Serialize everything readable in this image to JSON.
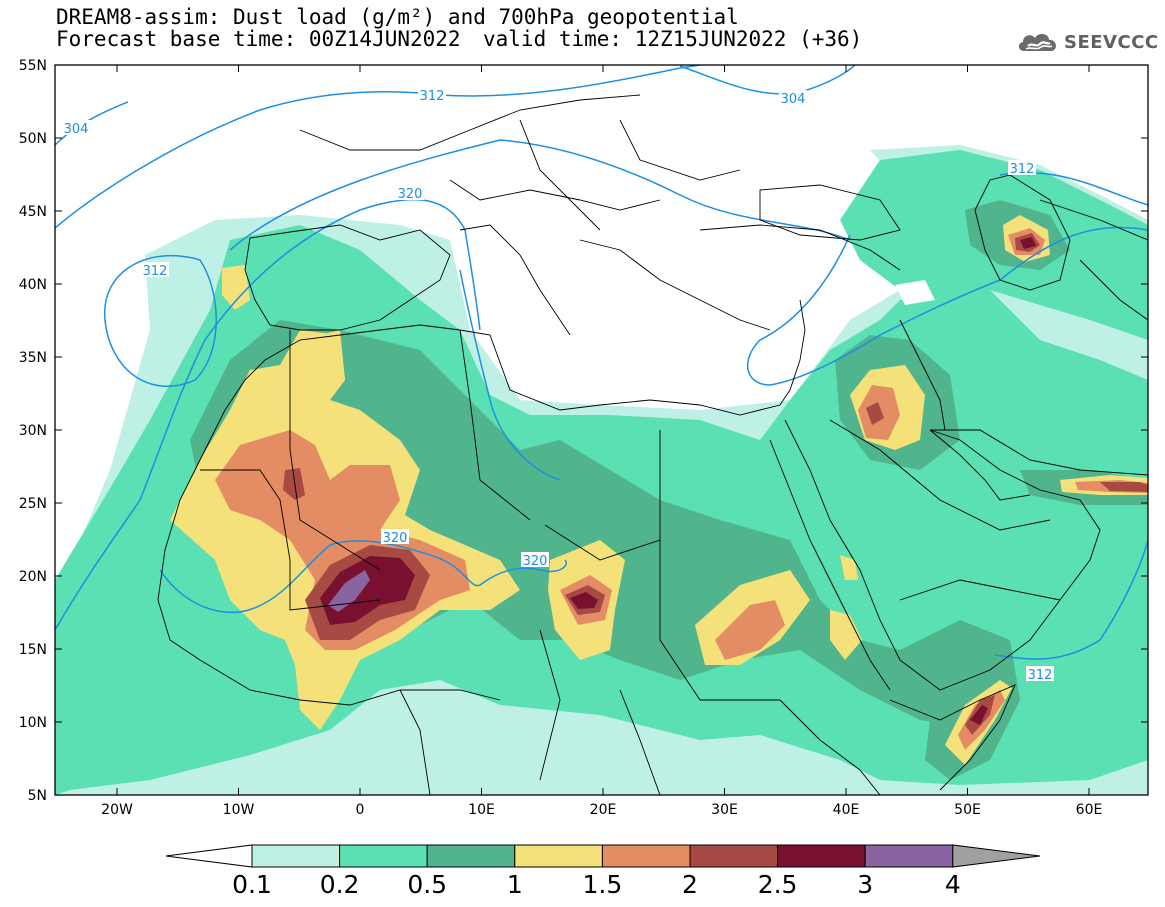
{
  "header": {
    "title_line1": "DREAM8-assim: Dust load (g/m²) and 700hPa geopotential",
    "title_line2_base": "Forecast base time: 00Z14JUN2022",
    "title_line2_valid": "valid time: 12Z15JUN2022 (+36)"
  },
  "logo": {
    "icon": "cloud-icon",
    "text": "SEEVCCC"
  },
  "map": {
    "lat_labels": [
      "55N",
      "50N",
      "45N",
      "40N",
      "35N",
      "30N",
      "25N",
      "20N",
      "15N",
      "10N",
      "5N"
    ],
    "lon_labels": [
      "20W",
      "10W",
      "0",
      "10E",
      "20E",
      "30E",
      "40E",
      "50E",
      "60E"
    ],
    "contour_labels": [
      "312",
      "304",
      "304",
      "320",
      "312",
      "312",
      "320",
      "320",
      "312"
    ]
  },
  "colorbar": {
    "levels": [
      "0.1",
      "0.2",
      "0.5",
      "1",
      "1.5",
      "2",
      "2.5",
      "3",
      "4"
    ],
    "colors": [
      "#ffffff",
      "#bff0e6",
      "#5ae0b2",
      "#50b48c",
      "#f5e17a",
      "#e48c64",
      "#a84a44",
      "#7a1030",
      "#8a64a0",
      "#a0a0a0"
    ]
  },
  "colors": {
    "ocean": "#ffffff",
    "light_dust": "#bff0e6",
    "dust_02": "#5ae0b2",
    "dust_05": "#50b48c",
    "dust_1": "#f5e17a",
    "dust_15": "#e48c64",
    "dust_2": "#a84a44",
    "dust_25": "#7a1030",
    "dust_3": "#8a64a0",
    "contour": "#1e8fe0",
    "border": "#000000"
  }
}
